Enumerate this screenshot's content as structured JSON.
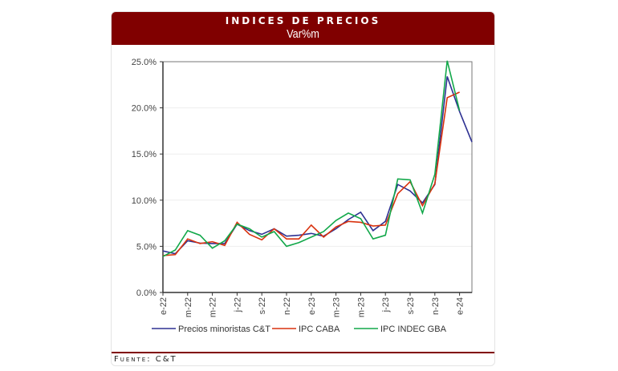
{
  "header": {
    "title": "INDICES DE PRECIOS",
    "subtitle": "Var%m"
  },
  "footer": {
    "source": "Fuente: C&T"
  },
  "chart_data": {
    "type": "line",
    "ylim": [
      0,
      25
    ],
    "yticks": [
      "0.0%",
      "5.0%",
      "10.0%",
      "15.0%",
      "20.0%",
      "25.0%"
    ],
    "ytick_values": [
      0,
      5,
      10,
      15,
      20,
      25
    ],
    "grid": true,
    "legend": "bottom",
    "x": [
      "e-22",
      "f-22",
      "m-22",
      "a-22",
      "m-22",
      "j-22",
      "j-22",
      "a-22",
      "s-22",
      "o-22",
      "n-22",
      "d-22",
      "e-23",
      "f-23",
      "m-23",
      "a-23",
      "m-23",
      "j-23",
      "j-23",
      "a-23",
      "s-23",
      "o-23",
      "n-23",
      "d-23",
      "e-24",
      "f-24"
    ],
    "xtick_labels": [
      "e-22",
      "m-22",
      "m-22",
      "j-22",
      "s-22",
      "n-22",
      "e-23",
      "m-23",
      "m-23",
      "j-23",
      "s-23",
      "n-23",
      "e-24"
    ],
    "series": [
      {
        "name": "Precios minoristas C&T",
        "color": "#2e3192",
        "values": [
          4.5,
          4.2,
          5.6,
          5.35,
          5.3,
          5.3,
          7.4,
          6.7,
          6.3,
          6.9,
          6.1,
          6.2,
          6.4,
          6.1,
          6.9,
          7.9,
          8.7,
          6.7,
          7.7,
          11.7,
          11.0,
          9.7,
          11.7,
          23.4,
          19.6,
          16.3
        ]
      },
      {
        "name": "IPC CABA",
        "color": "#d9320e",
        "values": [
          4.0,
          4.1,
          5.8,
          5.3,
          5.5,
          5.1,
          7.6,
          6.3,
          5.7,
          6.9,
          5.8,
          5.8,
          7.3,
          6.0,
          7.1,
          7.7,
          7.6,
          7.2,
          7.3,
          10.7,
          12.0,
          9.4,
          11.8,
          21.1,
          21.7,
          null
        ]
      },
      {
        "name": "IPC INDEC GBA",
        "color": "#12a84a",
        "values": [
          3.9,
          4.6,
          6.7,
          6.2,
          4.8,
          5.6,
          7.4,
          6.9,
          6.0,
          6.6,
          5.0,
          5.4,
          6.0,
          6.6,
          7.8,
          8.6,
          8.0,
          5.8,
          6.2,
          12.3,
          12.2,
          8.6,
          12.8,
          25.1,
          19.7,
          null
        ]
      }
    ]
  }
}
